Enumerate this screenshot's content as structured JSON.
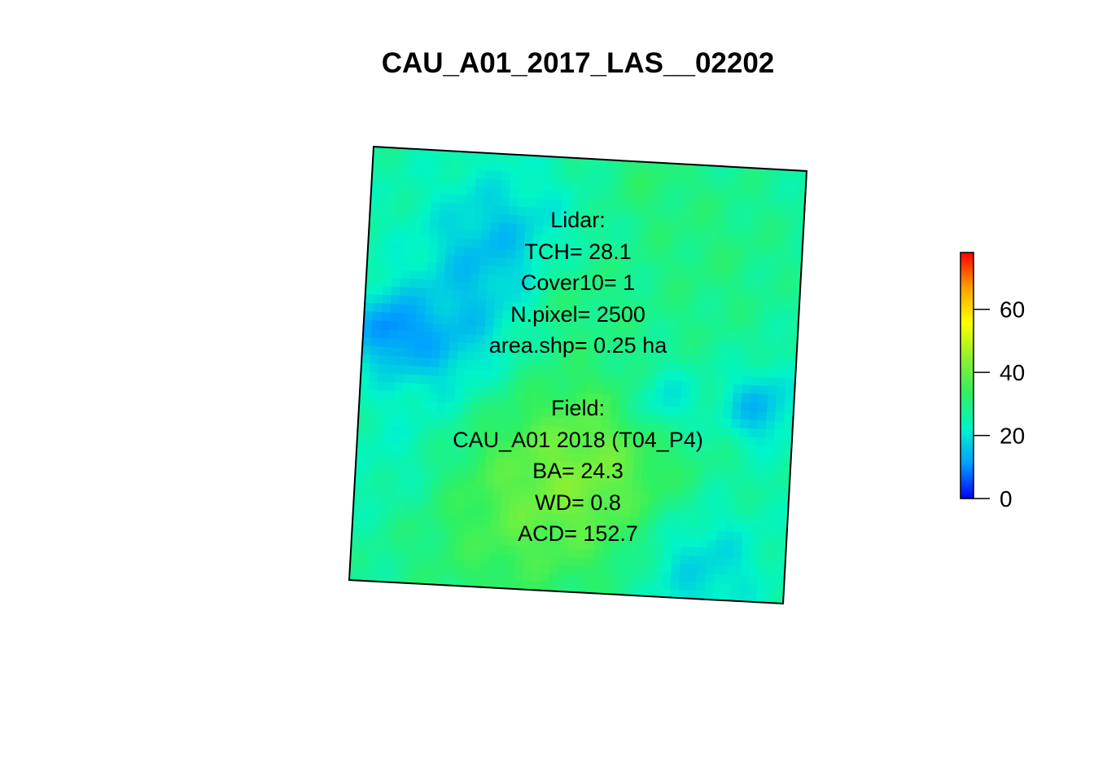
{
  "chart_data": {
    "type": "heatmap",
    "title": "CAU_A01_2017_LAS__02202",
    "xlabel": "",
    "ylabel": "",
    "grid": false,
    "legend_placement": "right",
    "colorbar": {
      "min": 0,
      "max": 78,
      "ticks": [
        0,
        20,
        40,
        60
      ],
      "colors": [
        "#0000ff",
        "#00a0ff",
        "#00f5c8",
        "#30f060",
        "#90f030",
        "#ffff00",
        "#ffa000",
        "#ff0000"
      ]
    },
    "raster_value_range": [
      5,
      45
    ],
    "annotations": {
      "lidar": {
        "header": "Lidar:",
        "tch": "TCH= 28.1",
        "cover10": "Cover10= 1",
        "npixel": "N.pixel= 2500",
        "area": "area.shp= 0.25 ha"
      },
      "field": {
        "header": "Field:",
        "plot": "CAU_A01 2018 (T04_P4)",
        "ba": "BA= 24.3",
        "wd": "WD= 0.8",
        "acd": "ACD= 152.7"
      }
    }
  }
}
